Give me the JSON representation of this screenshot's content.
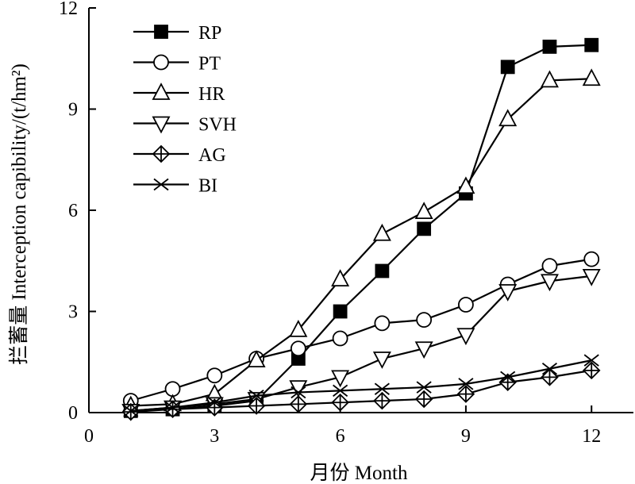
{
  "chart_data": {
    "type": "line",
    "xlabel": "月份 Month",
    "ylabel": "拦蓄量 Interception capibility/(t/hm²)",
    "xlim": [
      0,
      13
    ],
    "ylim": [
      0,
      12
    ],
    "x_ticks": [
      0,
      3,
      6,
      9,
      12
    ],
    "y_ticks": [
      0,
      3,
      6,
      9,
      12
    ],
    "grid": false,
    "legend_position": "top-left",
    "x": [
      1,
      2,
      3,
      4,
      5,
      6,
      7,
      8,
      9,
      10,
      11,
      12
    ],
    "series": [
      {
        "name": "RP",
        "marker": "filled-square",
        "values": [
          0.05,
          0.1,
          0.2,
          0.35,
          1.6,
          3.0,
          4.2,
          5.45,
          6.5,
          10.25,
          10.85,
          10.9
        ]
      },
      {
        "name": "PT",
        "marker": "open-circle",
        "values": [
          0.35,
          0.7,
          1.1,
          1.6,
          1.9,
          2.2,
          2.65,
          2.75,
          3.2,
          3.8,
          4.35,
          4.55
        ]
      },
      {
        "name": "HR",
        "marker": "open-triangle-up",
        "values": [
          0.2,
          0.25,
          0.55,
          1.55,
          2.45,
          3.95,
          5.3,
          5.95,
          6.7,
          8.7,
          9.85,
          9.9
        ]
      },
      {
        "name": "SVH",
        "marker": "open-triangle-down",
        "values": [
          0.05,
          0.15,
          0.25,
          0.4,
          0.75,
          1.05,
          1.6,
          1.9,
          2.3,
          3.6,
          3.9,
          4.05
        ]
      },
      {
        "name": "AG",
        "marker": "open-diamond-cross",
        "values": [
          0.02,
          0.1,
          0.15,
          0.2,
          0.25,
          0.3,
          0.35,
          0.4,
          0.55,
          0.9,
          1.05,
          1.25
        ]
      },
      {
        "name": "BI",
        "marker": "x-cross",
        "values": [
          0.05,
          0.15,
          0.3,
          0.5,
          0.6,
          0.65,
          0.7,
          0.75,
          0.85,
          1.05,
          1.3,
          1.55
        ]
      }
    ]
  }
}
